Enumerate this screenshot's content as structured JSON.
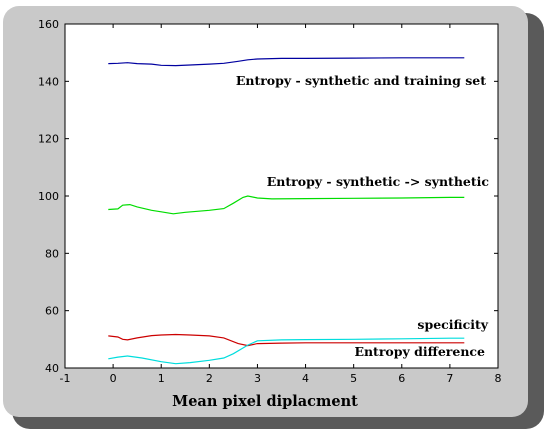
{
  "colors": {
    "frame_bg": "#c9c9c9",
    "frame_shadow": "#5a5a5a",
    "plot_bg": "#ffffff"
  },
  "chart_data": {
    "type": "line",
    "title": "",
    "xlabel": "Mean pixel diplacment",
    "ylabel": "",
    "xlim": [
      -1,
      8
    ],
    "ylim": [
      40,
      160
    ],
    "xticks": [
      -1,
      0,
      1,
      2,
      3,
      4,
      5,
      6,
      7,
      8
    ],
    "yticks": [
      40,
      60,
      80,
      100,
      120,
      140,
      160
    ],
    "grid": false,
    "annotations": [
      {
        "text": "Entropy - synthetic and training set"
      },
      {
        "text": "Entropy - synthetic -> synthetic"
      },
      {
        "text": "specificity"
      },
      {
        "text": "Entropy difference"
      }
    ],
    "series": [
      {
        "color": "#0000a0",
        "x": [
          -0.1,
          0.1,
          0.3,
          0.5,
          0.8,
          1.0,
          1.3,
          1.6,
          2.0,
          2.3,
          2.6,
          2.8,
          3.0,
          3.5,
          4.0,
          5.0,
          6.0,
          7.0,
          7.3
        ],
        "y": [
          146.2,
          146.3,
          146.5,
          146.2,
          146.0,
          145.6,
          145.5,
          145.7,
          146.0,
          146.3,
          147.0,
          147.5,
          147.8,
          148.0,
          148.0,
          148.1,
          148.2,
          148.2,
          148.2
        ]
      },
      {
        "color": "#00dd00",
        "x": [
          -0.1,
          0.1,
          0.2,
          0.35,
          0.5,
          0.8,
          1.0,
          1.25,
          1.5,
          2.0,
          2.3,
          2.5,
          2.7,
          2.8,
          3.0,
          3.3,
          4.0,
          5.0,
          6.0,
          7.0,
          7.3
        ],
        "y": [
          95.3,
          95.5,
          96.8,
          97.0,
          96.2,
          95.0,
          94.5,
          93.8,
          94.3,
          95.0,
          95.6,
          97.5,
          99.5,
          100.0,
          99.3,
          99.0,
          99.1,
          99.2,
          99.3,
          99.5,
          99.5
        ]
      },
      {
        "color": "#cc0000",
        "x": [
          -0.1,
          0.1,
          0.2,
          0.3,
          0.5,
          0.8,
          1.0,
          1.3,
          1.6,
          2.0,
          2.3,
          2.6,
          2.8,
          3.0,
          3.5,
          4.0,
          5.0,
          6.0,
          7.0,
          7.3
        ],
        "y": [
          51.2,
          50.8,
          50.0,
          49.8,
          50.5,
          51.3,
          51.5,
          51.7,
          51.5,
          51.2,
          50.5,
          48.5,
          47.8,
          48.5,
          48.7,
          48.8,
          48.8,
          48.8,
          48.8,
          48.8
        ]
      },
      {
        "color": "#00dddd",
        "x": [
          -0.1,
          0.1,
          0.3,
          0.6,
          1.0,
          1.3,
          1.6,
          2.0,
          2.3,
          2.5,
          2.8,
          3.0,
          3.5,
          4.0,
          5.0,
          6.0,
          7.0,
          7.3
        ],
        "y": [
          43.2,
          43.8,
          44.2,
          43.5,
          42.2,
          41.5,
          41.9,
          42.7,
          43.5,
          45.0,
          48.0,
          49.5,
          49.8,
          49.9,
          50.0,
          50.2,
          50.4,
          50.4
        ]
      }
    ]
  }
}
